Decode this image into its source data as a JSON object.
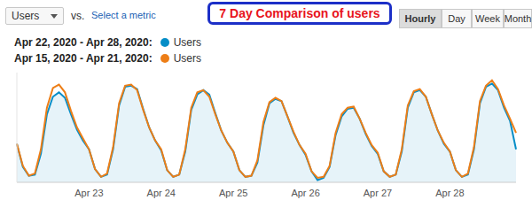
{
  "header": {
    "metric": "Users",
    "vs": "vs.",
    "select": "Select a metric",
    "annotation": "7 Day Comparison of users",
    "buttons": [
      "Hourly",
      "Day",
      "Week",
      "Month"
    ],
    "selected": "Hourly"
  },
  "chart_data": {
    "type": "line",
    "categories": [
      null,
      null,
      null,
      null,
      null,
      null,
      null,
      null,
      null,
      null,
      null,
      null,
      "Apr 23",
      null,
      null,
      null,
      null,
      null,
      null,
      null,
      null,
      null,
      null,
      null,
      "Apr 24",
      null,
      null,
      null,
      null,
      null,
      null,
      null,
      null,
      null,
      null,
      null,
      "Apr 25",
      null,
      null,
      null,
      null,
      null,
      null,
      null,
      null,
      null,
      null,
      null,
      "Apr 26",
      null,
      null,
      null,
      null,
      null,
      null,
      null,
      null,
      null,
      null,
      null,
      "Apr 27",
      null,
      null,
      null,
      null,
      null,
      null,
      null,
      null,
      null,
      null,
      null,
      "Apr 28",
      null,
      null,
      null,
      null,
      null,
      null,
      null,
      null,
      null,
      null,
      null
    ],
    "series": [
      {
        "name": "Users",
        "period": "Apr 22, 2020 - Apr 28, 2020:",
        "color": "#058dc7",
        "type": "area",
        "values": [
          35,
          14,
          6,
          7,
          26,
          62,
          78,
          82,
          77,
          62,
          48,
          38,
          30,
          12,
          5,
          7,
          30,
          70,
          87,
          88,
          85,
          67,
          50,
          38,
          29,
          11,
          5,
          7,
          28,
          66,
          80,
          84,
          80,
          63,
          47,
          36,
          28,
          11,
          5,
          6,
          18,
          52,
          72,
          76,
          74,
          60,
          45,
          34,
          25,
          10,
          2,
          4,
          14,
          43,
          60,
          67,
          68,
          58,
          44,
          33,
          26,
          10,
          5,
          7,
          28,
          68,
          82,
          84,
          78,
          62,
          47,
          35,
          28,
          11,
          5,
          7,
          30,
          72,
          87,
          90,
          84,
          68,
          56,
          30
        ]
      },
      {
        "name": "Users",
        "period": "Apr 15, 2020 - Apr 21, 2020:",
        "color": "#ed7e17",
        "type": "line",
        "values": [
          35,
          15,
          6,
          8,
          30,
          68,
          86,
          89,
          82,
          65,
          50,
          40,
          30,
          12,
          5,
          8,
          32,
          72,
          88,
          89,
          84,
          66,
          50,
          38,
          30,
          11,
          5,
          7,
          30,
          68,
          82,
          84,
          78,
          62,
          47,
          36,
          28,
          11,
          5,
          6,
          20,
          55,
          73,
          77,
          74,
          60,
          46,
          34,
          26,
          10,
          4,
          5,
          15,
          45,
          62,
          68,
          69,
          58,
          45,
          34,
          27,
          10,
          5,
          7,
          30,
          70,
          83,
          85,
          78,
          62,
          47,
          36,
          28,
          11,
          5,
          8,
          32,
          74,
          88,
          93,
          85,
          70,
          58,
          45
        ]
      }
    ],
    "ylim": [
      0,
      100
    ],
    "tick_labels": "x",
    "grid": false
  }
}
